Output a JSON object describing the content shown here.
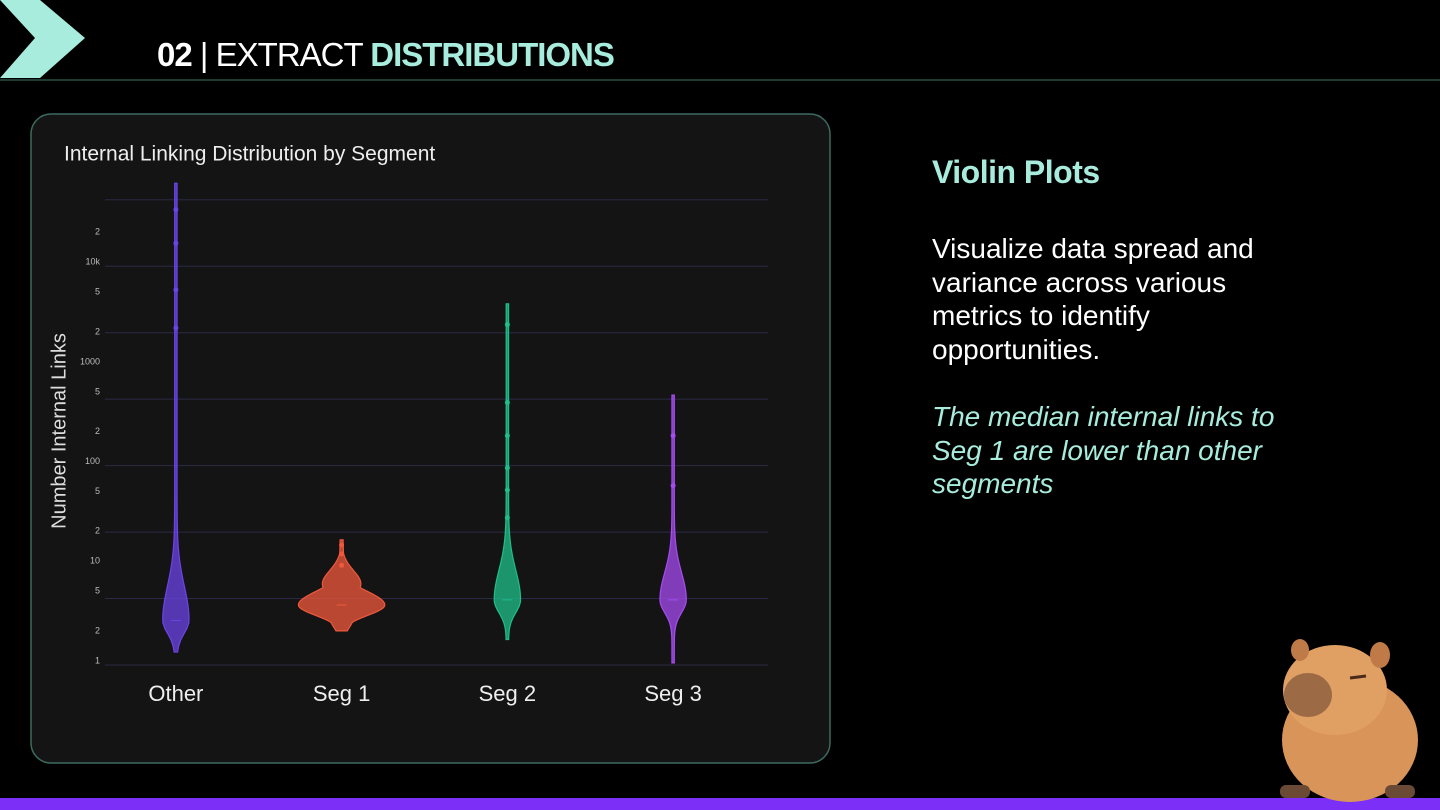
{
  "header": {
    "number": "02",
    "separator": "|",
    "prefix": "EXTRACT",
    "highlight": "DISTRIBUTIONS"
  },
  "chart_data": {
    "type": "violin",
    "title": "Internal Linking Distribution by Segment",
    "y_label": "Number Internal Links",
    "log_scale": true,
    "grid": true,
    "ylim": [
      1,
      70000
    ],
    "yticks": [
      1,
      2,
      5,
      10,
      {
        "value": 20,
        "label": "2"
      },
      {
        "value": 50,
        "label": "5"
      },
      100,
      {
        "value": 200,
        "label": "2"
      },
      {
        "value": 500,
        "label": "5"
      },
      1000,
      {
        "value": 2000,
        "label": "2"
      },
      {
        "value": 5000,
        "label": "5"
      },
      {
        "value": 10000,
        "label": "10k"
      },
      {
        "value": 20000,
        "label": "2"
      }
    ],
    "gridlines": [
      1,
      4.64,
      21.5,
      100,
      464,
      2154,
      10000,
      46416
    ],
    "categories": [
      "Other",
      "Seg 1",
      "Seg 2",
      "Seg 3"
    ],
    "series": [
      {
        "name": "Other",
        "color": "#6b44e6",
        "min": 1.35,
        "median": 2.8,
        "max": 68000,
        "points": [
          37000,
          17000,
          5800,
          2400
        ]
      },
      {
        "name": "Seg 1",
        "color": "#f0583c",
        "min": 2.2,
        "median": 4,
        "max": 18,
        "points": [
          16,
          13,
          10
        ]
      },
      {
        "name": "Seg 2",
        "color": "#1fbf8a",
        "min": 1.8,
        "median": 4.5,
        "max": 4200,
        "points": [
          2600,
          430,
          200,
          95,
          57,
          30
        ]
      },
      {
        "name": "Seg 3",
        "color": "#a64bf0",
        "min": 1.05,
        "median": 4.5,
        "max": 510,
        "points": [
          200,
          63
        ]
      }
    ]
  },
  "side": {
    "heading": "Violin Plots",
    "body": "Visualize data spread and variance across various metrics to identify opportunities.",
    "note": "The median internal links to Seg 1 are lower than other segments"
  }
}
